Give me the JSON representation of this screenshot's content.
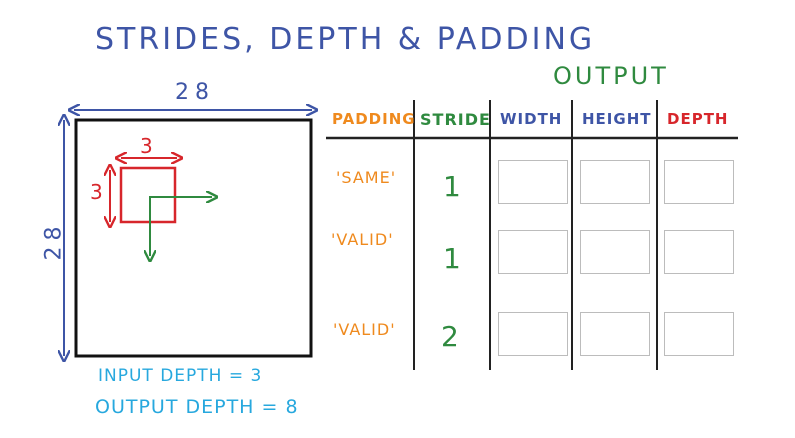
{
  "title": "STRIDES, DEPTH & PADDING",
  "output_label": "OUTPUT",
  "columns": {
    "padding": "PADDING",
    "stride": "STRIDE",
    "width": "WIDTH",
    "height": "HEIGHT",
    "depth": "DEPTH"
  },
  "rows": [
    {
      "padding": "'SAME'",
      "stride": "1"
    },
    {
      "padding": "'VALID'",
      "stride": "1"
    },
    {
      "padding": "'VALID'",
      "stride": "2"
    }
  ],
  "input": {
    "width_label": "28",
    "height_label": "28",
    "kernel_width_label": "3",
    "kernel_height_label": "3",
    "input_depth_text": "INPUT DEPTH = 3",
    "output_depth_text": "OUTPUT DEPTH = 8"
  },
  "colors": {
    "blue": "#3e55a6",
    "green": "#2f8a3f",
    "orange": "#ef8a1e",
    "red": "#d7262b",
    "cyan": "#27a8de"
  }
}
